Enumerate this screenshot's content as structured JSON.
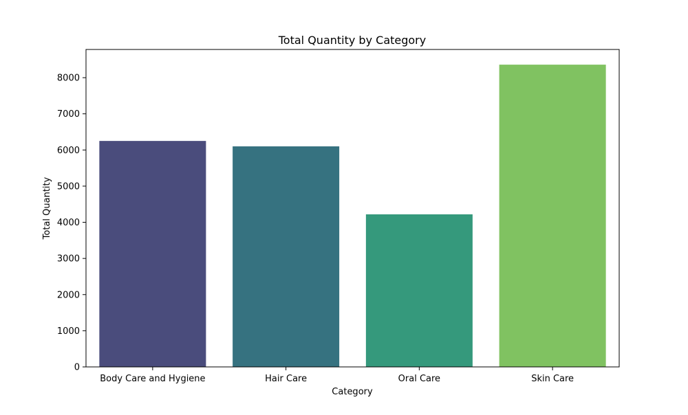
{
  "chart_data": {
    "type": "bar",
    "title": "Total Quantity by Category",
    "xlabel": "Category",
    "ylabel": "Total Quantity",
    "categories": [
      "Body Care and Hygiene",
      "Hair Care",
      "Oral Care",
      "Skin Care"
    ],
    "values": [
      6250,
      6100,
      4220,
      8360
    ],
    "colors": [
      "#4a4c7c",
      "#367280",
      "#35997c",
      "#80c261"
    ],
    "ylim": [
      0,
      8780
    ],
    "yticks": [
      0,
      1000,
      2000,
      3000,
      4000,
      5000,
      6000,
      7000,
      8000
    ],
    "grid": false,
    "legend": "none"
  }
}
